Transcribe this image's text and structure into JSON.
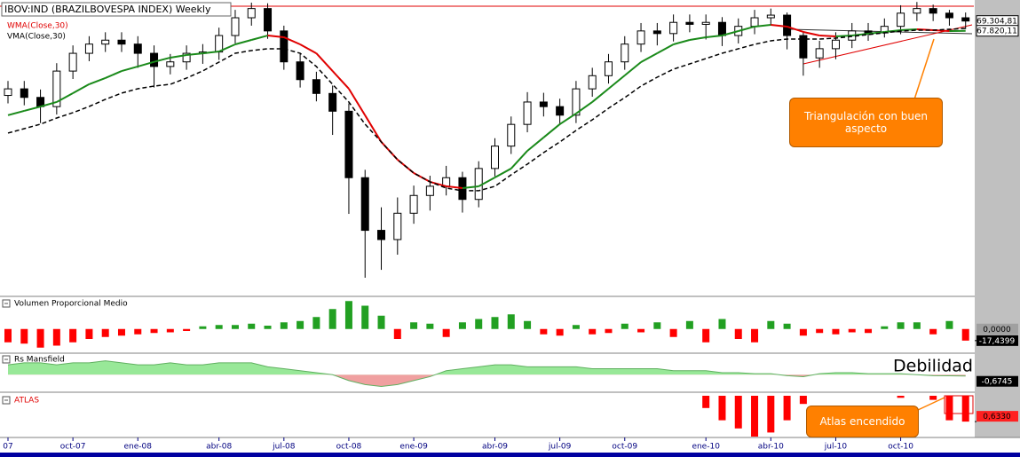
{
  "chart_data": [
    {
      "type": "candlestick",
      "title": "IBOV:IND (BRAZILBOVESPA INDEX) Weekly",
      "categories": [
        "07",
        null,
        null,
        null,
        "oct-07",
        null,
        null,
        null,
        "ene-08",
        null,
        null,
        null,
        null,
        "abr-08",
        null,
        null,
        null,
        "jul-08",
        null,
        null,
        null,
        "oct-08",
        null,
        null,
        null,
        "ene-09",
        null,
        null,
        null,
        null,
        "abr-09",
        null,
        null,
        null,
        "jul-09",
        null,
        null,
        null,
        "oct-09",
        null,
        null,
        null,
        null,
        "ene-10",
        null,
        null,
        null,
        "abr-10",
        null,
        null,
        null,
        "jul-10",
        null,
        null,
        null,
        "oct-10",
        null,
        null,
        null,
        null
      ],
      "open": [
        58000,
        59000,
        57700,
        56300,
        61700,
        64400,
        65800,
        66400,
        65800,
        64400,
        62400,
        63100,
        64400,
        64600,
        67100,
        69800,
        71200,
        67800,
        63100,
        60400,
        58300,
        55600,
        45500,
        37500,
        36100,
        40100,
        42800,
        44200,
        45500,
        42200,
        46900,
        50300,
        53600,
        57000,
        56300,
        55000,
        59000,
        61000,
        63100,
        65800,
        67800,
        67400,
        69100,
        68800,
        69100,
        67100,
        68500,
        69800,
        70200,
        67100,
        63700,
        65100,
        66400,
        67800,
        67500,
        68500,
        70500,
        71200,
        70500,
        69800
      ],
      "high": [
        60200,
        60200,
        58900,
        62900,
        65600,
        67000,
        67600,
        67600,
        67000,
        65600,
        64300,
        65600,
        65800,
        68300,
        71000,
        72100,
        72000,
        68600,
        64300,
        61600,
        59500,
        56800,
        46700,
        41000,
        42500,
        44300,
        45800,
        47300,
        46400,
        48000,
        51500,
        54800,
        58500,
        58400,
        57500,
        60200,
        62200,
        64300,
        67000,
        69000,
        69000,
        70300,
        70300,
        70300,
        69900,
        69700,
        71000,
        71200,
        70600,
        67600,
        66300,
        67600,
        69000,
        69000,
        69700,
        71700,
        72200,
        71800,
        71000,
        70600
      ],
      "low": [
        56800,
        56500,
        53800,
        55100,
        60500,
        63200,
        64600,
        64600,
        62200,
        59200,
        61200,
        61900,
        62800,
        63400,
        65900,
        68600,
        66600,
        61900,
        59200,
        57100,
        52000,
        40000,
        30300,
        31500,
        33800,
        38500,
        40500,
        42800,
        40200,
        41000,
        45700,
        49100,
        52400,
        54800,
        53500,
        53800,
        57800,
        59800,
        61900,
        64600,
        65600,
        66200,
        67600,
        66500,
        65500,
        65900,
        67300,
        68600,
        65000,
        61000,
        62200,
        63500,
        65200,
        66300,
        66800,
        67300,
        69300,
        69300,
        68600,
        68100
      ],
      "close": [
        59000,
        57700,
        56300,
        61700,
        64400,
        65800,
        66400,
        65800,
        64400,
        62400,
        63100,
        64400,
        64600,
        67100,
        69800,
        71200,
        67800,
        63100,
        60400,
        58300,
        55600,
        45500,
        37500,
        36100,
        40100,
        42800,
        44200,
        45500,
        42200,
        46900,
        50300,
        53600,
        57000,
        56300,
        55000,
        59000,
        61000,
        63100,
        65800,
        67800,
        67400,
        69100,
        68800,
        69100,
        67100,
        68500,
        69800,
        70200,
        67100,
        63700,
        65100,
        66400,
        67800,
        67500,
        68500,
        70500,
        71200,
        70500,
        69800,
        69304.81
      ],
      "up_color": "#ffffff",
      "down_color": "#000000",
      "ylim": [
        27600,
        72500
      ],
      "series": [
        {
          "name": "WMA(Close,30)",
          "color": "#1a8a1a",
          "falling_color": "#e00000",
          "label_color": "#e00000",
          "values": [
            55000,
            55650,
            56300,
            57000,
            58350,
            59700,
            60640,
            61700,
            62400,
            63100,
            63740,
            64140,
            64400,
            64680,
            65760,
            66430,
            67100,
            66840,
            65760,
            64400,
            61700,
            59020,
            54980,
            50930,
            48240,
            46210,
            44870,
            44190,
            43920,
            44190,
            45540,
            46890,
            49580,
            51610,
            53630,
            55250,
            57000,
            59020,
            61040,
            63060,
            64410,
            65760,
            66430,
            66840,
            67110,
            67780,
            68460,
            68730,
            68460,
            67650,
            67110,
            66970,
            67110,
            67380,
            67650,
            67920,
            68050,
            67920,
            67780,
            67820.11
          ]
        },
        {
          "name": "VMA(Close,30)",
          "color": "#000000",
          "label_color": "#000000",
          "dashed": true,
          "values": [
            52280,
            52950,
            53630,
            54570,
            55380,
            56320,
            57400,
            58350,
            59020,
            59420,
            59690,
            60640,
            61720,
            63060,
            64410,
            64820,
            65090,
            65090,
            64410,
            62390,
            59690,
            57000,
            53630,
            50930,
            48240,
            46210,
            44870,
            43920,
            43520,
            43520,
            44190,
            45940,
            47560,
            49310,
            50930,
            52680,
            54300,
            56050,
            57670,
            59420,
            60770,
            61990,
            62790,
            63600,
            64410,
            65090,
            65760,
            66300,
            66570,
            66570,
            66570,
            66700,
            66970,
            67240,
            67510,
            67780,
            67920,
            67920,
            68050,
            68190
          ]
        }
      ],
      "last_value_labels": [
        {
          "value": 69304.81,
          "label": "69.304,81"
        },
        {
          "value": 67820.11,
          "label": "67.820,11"
        }
      ],
      "annotation": "Triangulación con buen aspecto"
    },
    {
      "type": "bar",
      "title": "Volumen Proporcional Medio",
      "values": [
        -20,
        -22,
        -28,
        -25,
        -20,
        -15,
        -12,
        -10,
        -8,
        -6,
        -5,
        -3,
        4,
        6,
        6,
        8,
        5,
        10,
        12,
        18,
        30,
        42,
        35,
        20,
        -15,
        10,
        8,
        -12,
        10,
        15,
        18,
        22,
        12,
        -8,
        -10,
        6,
        -8,
        -6,
        8,
        -5,
        10,
        -12,
        12,
        -20,
        15,
        -15,
        -20,
        12,
        8,
        -10,
        -6,
        -8,
        -5,
        -6,
        4,
        10,
        10,
        -8,
        12,
        -17.4399
      ],
      "up_color": "#22a022",
      "down_color": "#ff0000",
      "ylim": [
        -35,
        45
      ],
      "yticks": [
        {
          "value": 0,
          "label": "0,0000"
        }
      ],
      "last_label": "-17,4399"
    },
    {
      "type": "area",
      "title": "Rs Mansfield",
      "values": [
        5,
        6,
        6,
        5,
        6,
        6,
        7,
        6,
        5,
        5,
        6,
        5,
        5,
        6,
        6,
        6,
        4,
        3,
        2,
        1,
        0,
        -3,
        -5,
        -6,
        -5,
        -3,
        -1,
        2,
        3,
        4,
        5,
        5,
        4,
        4,
        4,
        4,
        3,
        3,
        3,
        3,
        3,
        2,
        2,
        2,
        1,
        1,
        0.5,
        0.5,
        -0.5,
        -1,
        0.5,
        1,
        1,
        0.5,
        0.5,
        0.5,
        0,
        -0.5,
        -0.6,
        -0.6745
      ],
      "pos_color": "#98e898",
      "neg_color": "#f0a0a0",
      "line_color": "#60b060",
      "ylim": [
        -8,
        10
      ],
      "last_label": "-0,6745",
      "annotation": "Debilidad"
    },
    {
      "type": "bar",
      "title": "ATLAS",
      "title_color": "#e00000",
      "values": [
        0,
        0,
        0,
        0,
        0,
        0,
        0,
        0,
        0,
        0,
        0,
        0,
        0,
        0,
        0,
        0,
        0,
        0,
        0,
        0,
        0,
        0,
        0,
        0,
        0,
        0,
        0,
        0,
        0,
        0,
        0,
        0,
        0,
        0,
        0,
        0,
        0,
        0,
        0,
        0,
        0,
        0,
        0,
        0.3,
        0.6,
        0.8,
        1,
        0.9,
        0.6,
        0.2,
        0,
        0,
        0,
        0,
        0,
        0.05,
        0,
        0.1,
        0.6,
        0.633
      ],
      "color": "#ff0000",
      "ylim": [
        0,
        1
      ],
      "inverted": true,
      "last_label": "0,6330",
      "annotation": "Atlas encendido"
    }
  ]
}
